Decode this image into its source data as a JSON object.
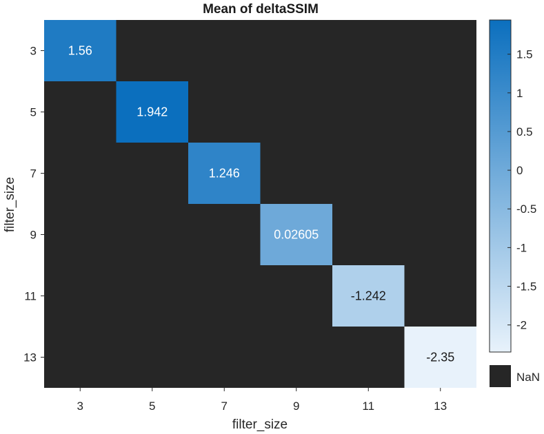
{
  "chart_data": {
    "type": "heatmap",
    "title": "Mean of deltaSSIM",
    "xlabel": "filter_size",
    "ylabel": "filter_size",
    "x_categories": [
      "3",
      "5",
      "7",
      "9",
      "11",
      "13"
    ],
    "y_categories": [
      "3",
      "5",
      "7",
      "9",
      "11",
      "13"
    ],
    "cells": [
      {
        "x": "3",
        "y": "3",
        "value": 1.56,
        "label": "1.56"
      },
      {
        "x": "5",
        "y": "5",
        "value": 1.942,
        "label": "1.942"
      },
      {
        "x": "7",
        "y": "7",
        "value": 1.246,
        "label": "1.246"
      },
      {
        "x": "9",
        "y": "9",
        "value": 0.02605,
        "label": "0.02605"
      },
      {
        "x": "11",
        "y": "11",
        "value": -1.242,
        "label": "-1.242"
      },
      {
        "x": "13",
        "y": "13",
        "value": -2.35,
        "label": "-2.35"
      }
    ],
    "missing_value_color": "#262626",
    "missing_label": "NaN",
    "colorbar": {
      "range": [
        -2.35,
        1.942
      ],
      "ticks": [
        1.5,
        1,
        0.5,
        0,
        -0.5,
        -1,
        -1.5,
        -2
      ],
      "tick_labels": [
        "1.5",
        "1",
        "0.5",
        "0",
        "-0.5",
        "-1",
        "-1.5",
        "-2"
      ],
      "color_low": "#e8f2fb",
      "color_high": "#0b6fbe"
    },
    "grid": false
  }
}
